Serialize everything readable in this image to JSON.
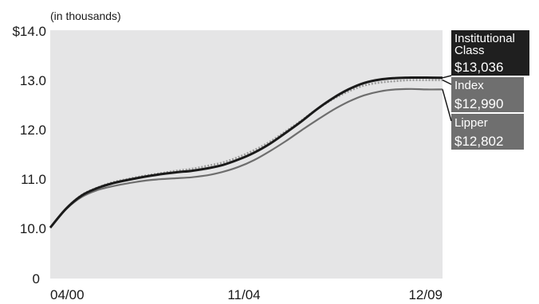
{
  "chart_data": {
    "type": "line",
    "unit_note": "(in thousands)",
    "x_tick_labels": [
      "04/00",
      "11/04",
      "12/09"
    ],
    "y_tick_labels": [
      "$14.0",
      "13.0",
      "12.0",
      "11.0",
      "10.0",
      "0"
    ],
    "y_axis_break": true,
    "ylim": [
      10.0,
      14.0
    ],
    "grid": false,
    "legend": "right-side labels",
    "x": [
      0,
      0.04,
      0.08,
      0.12,
      0.16,
      0.2,
      0.24,
      0.28,
      0.32,
      0.36,
      0.4,
      0.44,
      0.48,
      0.52,
      0.56,
      0.6,
      0.64,
      0.68,
      0.72,
      0.76,
      0.8,
      0.84,
      0.88,
      0.92,
      0.96,
      1.0
    ],
    "series": [
      {
        "name": "Institutional Class",
        "final_value": "$13,036",
        "color": "#1a1a1a",
        "values": [
          10.0,
          10.38,
          10.65,
          10.8,
          10.9,
          10.97,
          11.03,
          11.08,
          11.12,
          11.15,
          11.2,
          11.27,
          11.38,
          11.52,
          11.7,
          11.92,
          12.15,
          12.4,
          12.62,
          12.8,
          12.93,
          13.0,
          13.03,
          13.04,
          13.04,
          13.036
        ]
      },
      {
        "name": "Index",
        "final_value": "$12,990",
        "color": "#9a9a9a",
        "values": [
          10.0,
          10.38,
          10.66,
          10.81,
          10.92,
          10.99,
          11.05,
          11.1,
          11.15,
          11.19,
          11.25,
          11.32,
          11.43,
          11.57,
          11.74,
          11.95,
          12.17,
          12.4,
          12.6,
          12.76,
          12.88,
          12.94,
          12.97,
          12.99,
          12.99,
          12.99
        ]
      },
      {
        "name": "Lipper",
        "final_value": "$12,802",
        "color": "#6e6e6e",
        "values": [
          10.0,
          10.37,
          10.62,
          10.76,
          10.84,
          10.9,
          10.95,
          10.98,
          11.0,
          11.02,
          11.06,
          11.13,
          11.23,
          11.37,
          11.55,
          11.75,
          11.97,
          12.18,
          12.38,
          12.55,
          12.68,
          12.76,
          12.8,
          12.81,
          12.8,
          12.802
        ]
      }
    ]
  }
}
